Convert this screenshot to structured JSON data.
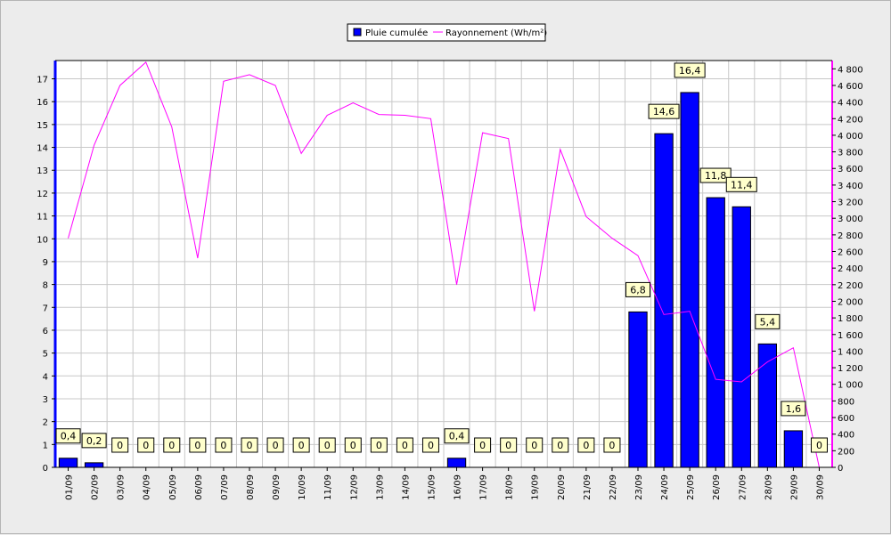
{
  "chart_data": {
    "type": "bar",
    "categories": [
      "01/09",
      "02/09",
      "03/09",
      "04/09",
      "05/09",
      "06/09",
      "07/09",
      "08/09",
      "09/09",
      "10/09",
      "11/09",
      "12/09",
      "13/09",
      "14/09",
      "15/09",
      "16/09",
      "17/09",
      "18/09",
      "19/09",
      "20/09",
      "21/09",
      "22/09",
      "23/09",
      "24/09",
      "25/09",
      "26/09",
      "27/09",
      "28/09",
      "29/09",
      "30/09"
    ],
    "series": [
      {
        "name": "Pluie cumulée",
        "type": "bar",
        "axis": "left",
        "color": "#0000ff",
        "values": [
          0.4,
          0.2,
          0,
          0,
          0,
          0,
          0,
          0,
          0,
          0,
          0,
          0,
          0,
          0,
          0,
          0.4,
          0,
          0,
          0,
          0,
          0,
          0,
          6.8,
          14.6,
          16.4,
          11.8,
          11.4,
          5.4,
          1.6,
          0
        ],
        "labels": [
          "0,4",
          "0,2",
          "0",
          "0",
          "0",
          "0",
          "0",
          "0",
          "0",
          "0",
          "0",
          "0",
          "0",
          "0",
          "0",
          "0,4",
          "0",
          "0",
          "0",
          "0",
          "0",
          "0",
          "6,8",
          "14,6",
          "16,4",
          "11,8",
          "11,4",
          "5,4",
          "1,6",
          "0"
        ]
      },
      {
        "name": "Rayonnement (Wh/m²)",
        "type": "line",
        "axis": "right",
        "color": "#ff00ff",
        "values": [
          2760,
          3880,
          4600,
          4880,
          4100,
          2520,
          4650,
          4730,
          4600,
          3780,
          4240,
          4390,
          4250,
          4240,
          4200,
          2200,
          4030,
          3960,
          1880,
          3830,
          3020,
          2760,
          2550,
          1840,
          1880,
          1060,
          1030,
          1270,
          1440,
          0
        ]
      }
    ],
    "y_left": {
      "min": 0,
      "max": 17.8,
      "ticks": [
        "0",
        "1",
        "2",
        "3",
        "4",
        "5",
        "6",
        "7",
        "8",
        "9",
        "10",
        "11",
        "12",
        "13",
        "14",
        "15",
        "16",
        "17"
      ]
    },
    "y_right": {
      "min": 0,
      "max": 4900,
      "ticks": [
        "0",
        "200",
        "400",
        "600",
        "800",
        "1 000",
        "1 200",
        "1 400",
        "1 600",
        "1 800",
        "2 000",
        "2 200",
        "2 400",
        "2 600",
        "2 800",
        "3 000",
        "3 200",
        "3 400",
        "3 600",
        "3 800",
        "4 000",
        "4 200",
        "4 400",
        "4 600",
        "4 800"
      ]
    },
    "grid": true,
    "legend_position": "top-center"
  }
}
